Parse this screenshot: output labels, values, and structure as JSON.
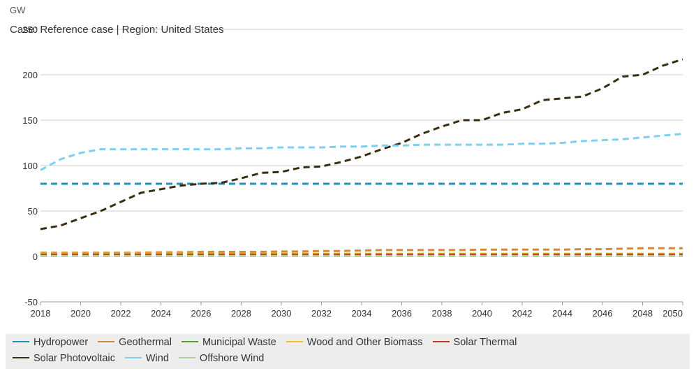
{
  "header": {
    "unit": "GW",
    "subtitle": "Case: Reference case | Region: United States"
  },
  "chart_data": {
    "type": "line",
    "x": [
      2018,
      2019,
      2020,
      2021,
      2022,
      2023,
      2024,
      2025,
      2026,
      2027,
      2028,
      2029,
      2030,
      2031,
      2032,
      2033,
      2034,
      2035,
      2036,
      2037,
      2038,
      2039,
      2040,
      2041,
      2042,
      2043,
      2044,
      2045,
      2046,
      2047,
      2048,
      2049,
      2050
    ],
    "xticks": [
      "2018",
      "2020",
      "2022",
      "2024",
      "2026",
      "2028",
      "2030",
      "2032",
      "2034",
      "2036",
      "2038",
      "2040",
      "2042",
      "2044",
      "2046",
      "2048",
      "2050"
    ],
    "yticks": [
      "-50",
      "0",
      "50",
      "100",
      "150",
      "200",
      "250"
    ],
    "ylim": [
      -50,
      250
    ],
    "xlim": [
      2018,
      2050
    ],
    "grid": true,
    "legend_position": "bottom",
    "series": [
      {
        "name": "Hydropower",
        "color": "#1f8fbf",
        "values": [
          80,
          80,
          80,
          80,
          80,
          80,
          80,
          80,
          80,
          80,
          80,
          80,
          80,
          80,
          80,
          80,
          80,
          80,
          80,
          80,
          80,
          80,
          80,
          80,
          80,
          80,
          80,
          80,
          80,
          80,
          80,
          80,
          80
        ]
      },
      {
        "name": "Geothermal",
        "color": "#d08a3c",
        "values": [
          4,
          4,
          4,
          4,
          4,
          4,
          4.5,
          4.5,
          5,
          5,
          5,
          5,
          5.5,
          5.5,
          6,
          6,
          6.5,
          7,
          7,
          7,
          7,
          7,
          7.5,
          7.5,
          7.5,
          7.5,
          7.5,
          8,
          8,
          8.5,
          9,
          9,
          9
        ]
      },
      {
        "name": "Municipal Waste",
        "color": "#5a9a3a",
        "values": [
          2,
          2,
          2,
          2,
          2,
          2,
          2,
          2,
          2,
          2,
          2,
          2,
          2,
          2,
          2,
          2,
          2,
          2,
          2,
          2,
          2,
          2,
          2,
          2,
          2,
          2,
          2,
          2,
          2,
          2,
          2,
          2,
          2
        ]
      },
      {
        "name": "Wood and Other Biomass",
        "color": "#f0c020",
        "values": [
          3,
          3,
          3,
          3,
          3,
          3,
          3,
          3,
          3,
          3,
          3,
          3,
          3,
          3,
          3,
          3,
          3,
          3,
          3,
          3,
          3,
          3,
          3,
          3,
          3,
          3,
          3,
          3,
          3,
          3,
          3,
          3,
          3
        ]
      },
      {
        "name": "Solar Thermal",
        "color": "#c0392b",
        "values": [
          2,
          2,
          2,
          2,
          2,
          2,
          2,
          2,
          2,
          2,
          2,
          2,
          2,
          2,
          2,
          2,
          2,
          2,
          2,
          2,
          2,
          2,
          2,
          2,
          2,
          2,
          2,
          2,
          2,
          2,
          2,
          2,
          2
        ]
      },
      {
        "name": "Solar Photovoltaic",
        "color": "#3a2e12",
        "values": [
          30,
          34,
          42,
          50,
          60,
          70,
          74,
          78,
          80,
          81,
          86,
          92,
          93,
          98,
          99,
          104,
          110,
          118,
          125,
          135,
          143,
          150,
          150,
          158,
          162,
          172,
          174,
          176,
          185,
          198,
          200,
          210,
          217
        ]
      },
      {
        "name": "Wind",
        "color": "#7ed0f2",
        "values": [
          95,
          107,
          114,
          118,
          118,
          118,
          118,
          118,
          118,
          118,
          119,
          119,
          120,
          120,
          120,
          121,
          121,
          122,
          122,
          123,
          123,
          123,
          123,
          123,
          124,
          124,
          125,
          127,
          128,
          129,
          131,
          133,
          135
        ]
      },
      {
        "name": "Offshore Wind",
        "color": "#a7d39a",
        "values": [
          0.5,
          0.5,
          0.5,
          0.5,
          0.5,
          0.5,
          0.5,
          0.5,
          0.5,
          0.5,
          0.5,
          0.5,
          0.5,
          0.5,
          0.5,
          0.5,
          0.5,
          0.5,
          0.5,
          0.5,
          0.5,
          0.5,
          0.5,
          0.5,
          0.5,
          0.5,
          0.5,
          0.5,
          0.5,
          0.5,
          0.5,
          0.5,
          0.5
        ]
      }
    ]
  }
}
